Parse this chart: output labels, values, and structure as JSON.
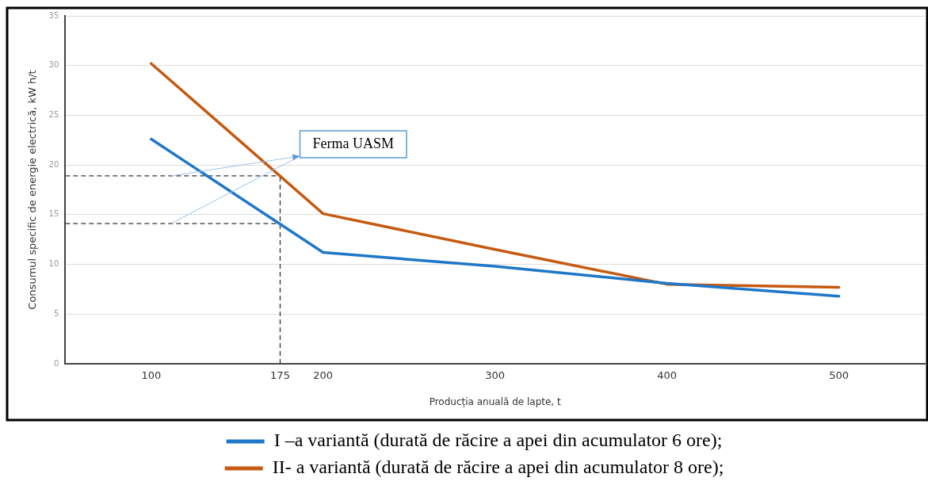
{
  "chart_data": {
    "type": "line",
    "xlabel": "Producția anuală de lapte, t",
    "ylabel": "Consumul specific de energie electrică, kW h/t",
    "x": [
      100,
      200,
      300,
      400,
      500
    ],
    "series": [
      {
        "name": "I –a variantă (durată de răcire a apei din acumulator 6 ore);",
        "color": "#1f77c8",
        "values": [
          22.6,
          11.2,
          9.8,
          8.1,
          6.8
        ]
      },
      {
        "name": "II- a variantă (durată de răcire a apei din acumulator 8 ore);",
        "color": "#c55a11",
        "values": [
          30.2,
          15.1,
          11.5,
          8.0,
          7.7
        ]
      }
    ],
    "xlim": [
      50,
      550
    ],
    "xticks": [
      100,
      175,
      200,
      300,
      400,
      500
    ],
    "ylim": [
      0,
      35
    ],
    "yticks": [
      0,
      5,
      10,
      15,
      20,
      25,
      30,
      35
    ],
    "ref_lines": [
      {
        "axis": "x",
        "value": 175,
        "color": "#333333",
        "line_style": "dashed"
      },
      {
        "axis": "y",
        "value": 18.9,
        "color": "#333333",
        "line_style": "dashed"
      },
      {
        "axis": "y",
        "value": 14.1,
        "color": "#333333",
        "line_style": "dashed"
      }
    ],
    "annotations": [
      {
        "text": "Ferma UASM",
        "x": 175,
        "y": 18.9
      }
    ],
    "grid": "y",
    "legend": "bottom",
    "marker": "none",
    "line_style": "solid"
  }
}
